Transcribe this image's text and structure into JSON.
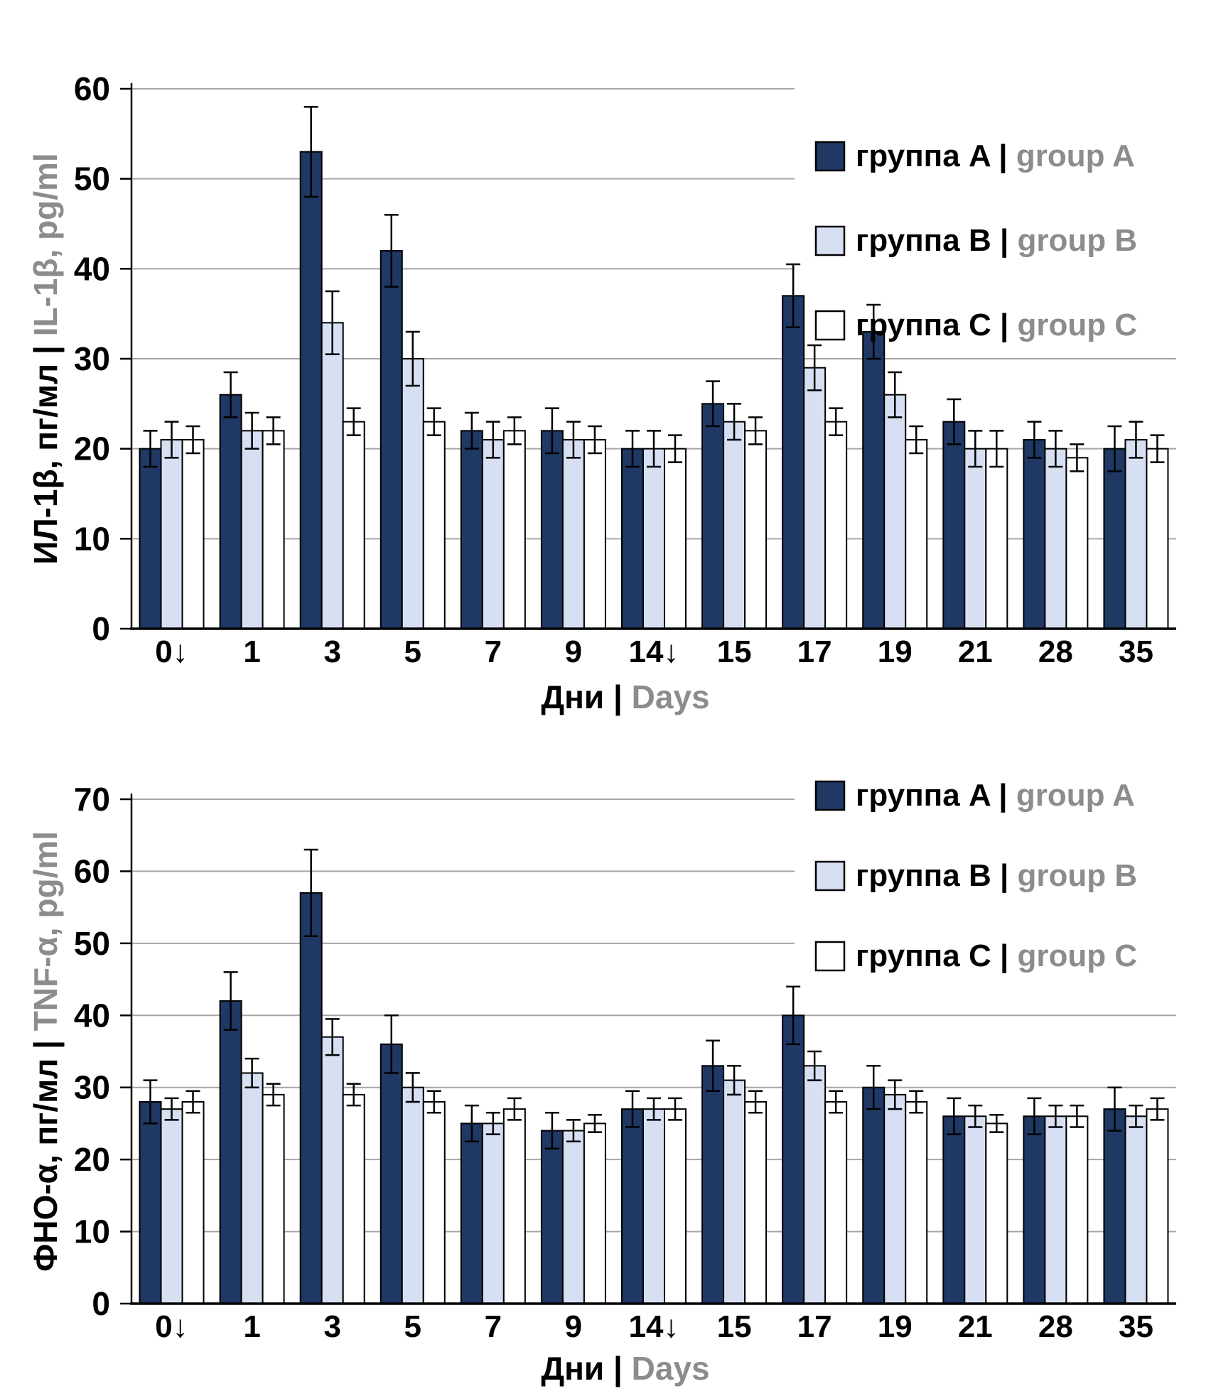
{
  "figure": {
    "description_visible_text_only": true,
    "colors": {
      "group_a_fill": "#1F3864",
      "group_b_fill": "#D6E0F2",
      "group_c_fill": "#FFFFFF",
      "bar_outline": "#000000",
      "error_bar": "#000000",
      "gridline": "#A6A6A6",
      "axis_line": "#000000",
      "primary_text": "#000000",
      "secondary_text": "#8C8C8C"
    }
  },
  "chart_data": [
    {
      "type": "bar",
      "title": "",
      "ylabel_primary": "ИЛ-1β, пг/мл",
      "ylabel_divider": "|",
      "ylabel_secondary": "IL-1β, pg/ml",
      "xlabel_primary": "Дни",
      "xlabel_divider": "|",
      "xlabel_secondary": "Days",
      "ylim": [
        0,
        60
      ],
      "ytick_step": 10,
      "ytick_labels": [
        "0",
        "10",
        "20",
        "30",
        "40",
        "50",
        "60"
      ],
      "grid": true,
      "legend_position": "top-right",
      "truncated_gridlines": [
        40,
        50,
        60
      ],
      "categories": [
        "0↓",
        "1",
        "3",
        "5",
        "7",
        "9",
        "14↓",
        "15",
        "17",
        "19",
        "21",
        "28",
        "35"
      ],
      "series": [
        {
          "name_ru": "группа A",
          "name_en": "group A",
          "color_key": "group_a_fill",
          "values": [
            20,
            26,
            53,
            42,
            22,
            22,
            20,
            25,
            37,
            33,
            23,
            21,
            20
          ],
          "errors": [
            2,
            2.5,
            5,
            4,
            2,
            2.5,
            2,
            2.5,
            3.5,
            3,
            2.5,
            2,
            2.5
          ]
        },
        {
          "name_ru": "группа B",
          "name_en": "group B",
          "color_key": "group_b_fill",
          "values": [
            21,
            22,
            34,
            30,
            21,
            21,
            20,
            23,
            29,
            26,
            20,
            20,
            21
          ],
          "errors": [
            2,
            2,
            3.5,
            3,
            2,
            2,
            2,
            2,
            2.5,
            2.5,
            2,
            2,
            2
          ]
        },
        {
          "name_ru": "группа C",
          "name_en": "group C",
          "color_key": "group_c_fill",
          "values": [
            21,
            22,
            23,
            23,
            22,
            21,
            20,
            22,
            23,
            21,
            20,
            19,
            20
          ],
          "errors": [
            1.5,
            1.5,
            1.5,
            1.5,
            1.5,
            1.5,
            1.5,
            1.5,
            1.5,
            1.5,
            2,
            1.5,
            1.5
          ]
        }
      ]
    },
    {
      "type": "bar",
      "title": "",
      "ylabel_primary": "ФНО-α, пг/мл",
      "ylabel_divider": "|",
      "ylabel_secondary": "TNF-α, pg/ml",
      "xlabel_primary": "Дни",
      "xlabel_divider": "|",
      "xlabel_secondary": "Days",
      "ylim": [
        0,
        70
      ],
      "ytick_step": 10,
      "ytick_labels": [
        "0",
        "10",
        "20",
        "30",
        "40",
        "50",
        "60",
        "70"
      ],
      "grid": true,
      "legend_position": "top-right",
      "truncated_gridlines": [
        50,
        60,
        70
      ],
      "categories": [
        "0↓",
        "1",
        "3",
        "5",
        "7",
        "9",
        "14↓",
        "15",
        "17",
        "19",
        "21",
        "28",
        "35"
      ],
      "series": [
        {
          "name_ru": "группа A",
          "name_en": "group A",
          "color_key": "group_a_fill",
          "values": [
            28,
            42,
            57,
            36,
            25,
            24,
            27,
            33,
            40,
            30,
            26,
            26,
            27
          ],
          "errors": [
            3,
            4,
            6,
            4,
            2.5,
            2.5,
            2.5,
            3.5,
            4,
            3,
            2.5,
            2.5,
            3
          ]
        },
        {
          "name_ru": "группа B",
          "name_en": "group B",
          "color_key": "group_b_fill",
          "values": [
            27,
            32,
            37,
            30,
            25,
            24,
            27,
            31,
            33,
            29,
            26,
            26,
            26
          ],
          "errors": [
            1.5,
            2,
            2.5,
            2,
            1.5,
            1.5,
            1.5,
            2,
            2,
            2,
            1.5,
            1.5,
            1.5
          ]
        },
        {
          "name_ru": "группа C",
          "name_en": "group C",
          "color_key": "group_c_fill",
          "values": [
            28,
            29,
            29,
            28,
            27,
            25,
            27,
            28,
            28,
            28,
            25,
            26,
            27
          ],
          "errors": [
            1.5,
            1.5,
            1.5,
            1.5,
            1.5,
            1.2,
            1.5,
            1.5,
            1.5,
            1.5,
            1.2,
            1.5,
            1.5
          ]
        }
      ]
    }
  ]
}
